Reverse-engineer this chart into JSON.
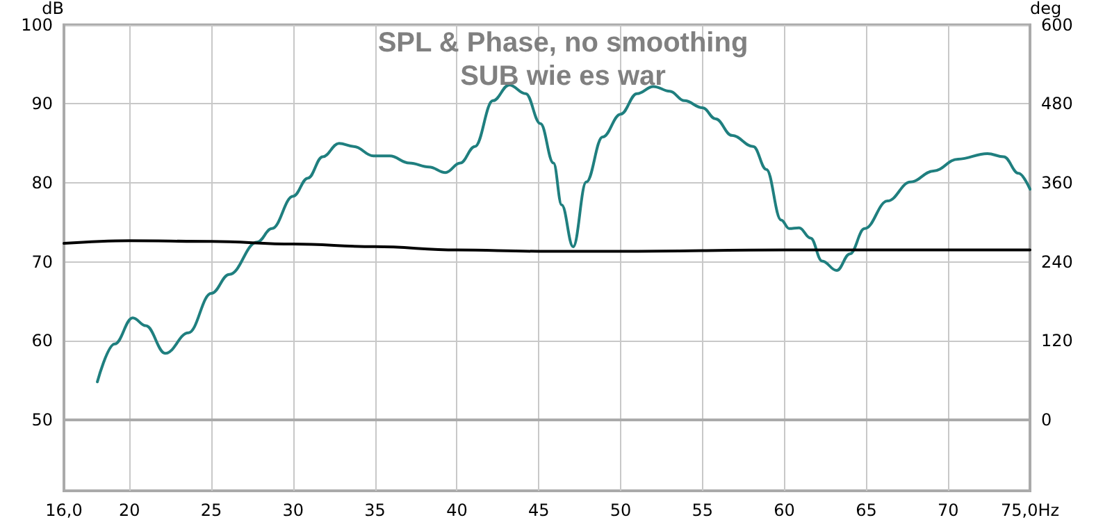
{
  "chart_data": {
    "type": "line",
    "title": "SPL & Phase, no smoothing",
    "subtitle": "SUB wie es war",
    "ylabel": "dB",
    "y2label": "deg",
    "xlim": [
      16,
      75
    ],
    "xticks": [
      {
        "value": 16,
        "label": "16,0"
      },
      20,
      25,
      30,
      35,
      40,
      45,
      50,
      55,
      60,
      65,
      70,
      {
        "value": 75,
        "label": "75,0Hz"
      }
    ],
    "ylim": [
      41,
      100
    ],
    "yticks": [
      50,
      60,
      70,
      80,
      90,
      100
    ],
    "y2lim": [
      -108,
      600
    ],
    "y2ticks": [
      0,
      120,
      240,
      360,
      480,
      600
    ],
    "grid": true,
    "series": [
      {
        "color": "#1f7f7f",
        "x": [
          18.04,
          19.1,
          20.2,
          21.0,
          22.2,
          23.6,
          25.0,
          26.1,
          27.8,
          28.7,
          30.0,
          30.9,
          31.8,
          32.8,
          33.7,
          34.9,
          35.9,
          37.1,
          38.3,
          39.3,
          40.2,
          41.1,
          42.2,
          43.2,
          44.2,
          45.1,
          45.9,
          46.4,
          47.1,
          47.9,
          48.9,
          50.0,
          51.0,
          52.0,
          53.0,
          53.9,
          55.0,
          55.8,
          56.8,
          58.1,
          58.9,
          59.8,
          60.3,
          60.9,
          61.6,
          62.3,
          63.2,
          64.0,
          64.9,
          66.3,
          67.7,
          69.1,
          70.6,
          72.4,
          73.4,
          74.3,
          75.0
        ],
        "values": [
          54.8,
          59.6,
          62.9,
          61.9,
          58.4,
          61.0,
          66.0,
          68.4,
          72.5,
          74.2,
          78.3,
          80.6,
          83.3,
          85.0,
          84.6,
          83.4,
          83.4,
          82.5,
          82.0,
          81.3,
          82.5,
          84.6,
          90.4,
          92.4,
          91.3,
          87.5,
          82.5,
          77.2,
          71.9,
          80.1,
          85.8,
          88.7,
          91.3,
          92.2,
          91.6,
          90.4,
          89.5,
          88.1,
          86.0,
          84.6,
          81.7,
          75.3,
          74.2,
          74.3,
          73.0,
          70.1,
          68.9,
          71.0,
          74.2,
          77.7,
          80.1,
          81.5,
          83.0,
          83.7,
          83.3,
          81.2,
          79.2
        ]
      },
      {
        "color": "#000000",
        "axis": "y2",
        "x": [
          16,
          20,
          25,
          30,
          35,
          40,
          45,
          50,
          60,
          70,
          75
        ],
        "values": [
          268,
          272,
          271,
          267,
          263,
          258,
          256,
          256,
          258,
          258,
          258
        ]
      }
    ]
  }
}
